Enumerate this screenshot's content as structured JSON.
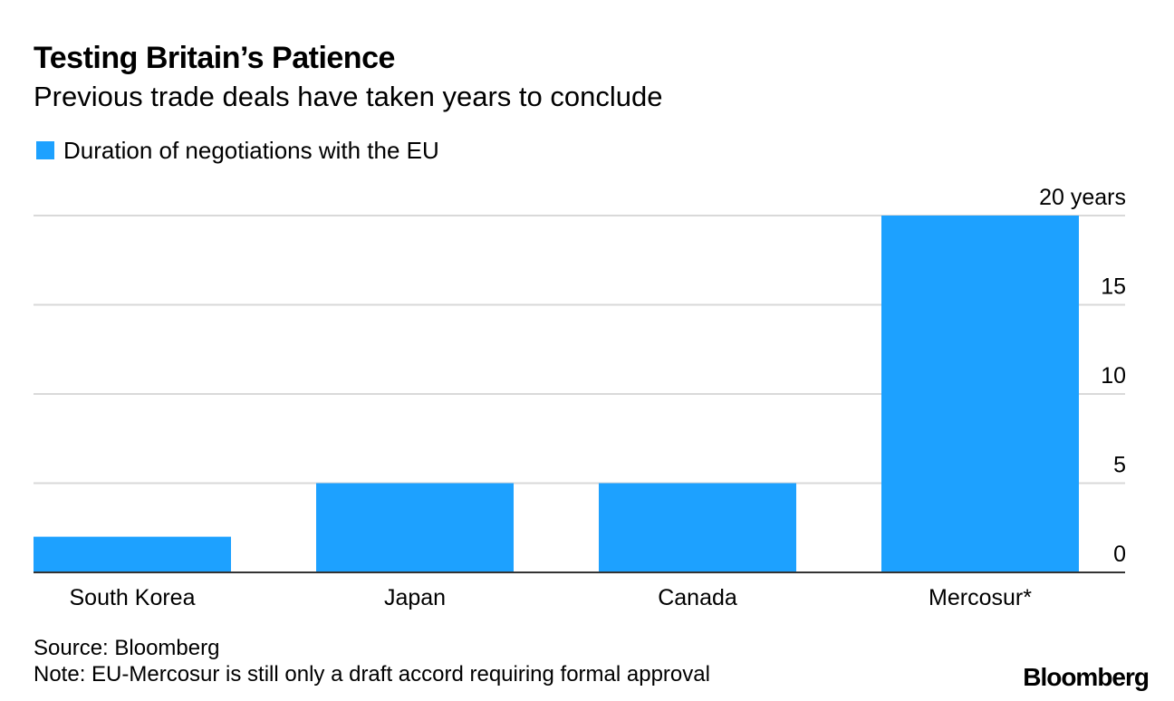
{
  "header": {
    "title": "Testing Britain’s Patience",
    "subtitle": "Previous trade deals have taken years to conclude"
  },
  "legend": {
    "label": "Duration of negotiations with the EU"
  },
  "footer": {
    "source": "Source: Bloomberg",
    "note": "Note: EU-Mercosur is still only a draft accord requiring formal approval",
    "logo": "Bloomberg"
  },
  "colors": {
    "bar": "#1da1ff",
    "grid": "#d9d9d9",
    "axis": "#333333"
  },
  "chart_data": {
    "type": "bar",
    "title": "Testing Britain’s Patience",
    "subtitle": "Previous trade deals have taken years to conclude",
    "categories": [
      "South Korea",
      "Japan",
      "Canada",
      "Mercosur*"
    ],
    "series": [
      {
        "name": "Duration of negotiations with the EU",
        "values": [
          2,
          5,
          5,
          20
        ]
      }
    ],
    "ylim": [
      0,
      20
    ],
    "yticks": [
      0,
      5,
      10,
      15,
      20
    ],
    "ytick_labels": [
      "0",
      "5",
      "10",
      "15",
      "20 years"
    ],
    "yaxis_side": "right",
    "grid": true,
    "xlabel": "",
    "ylabel": ""
  }
}
